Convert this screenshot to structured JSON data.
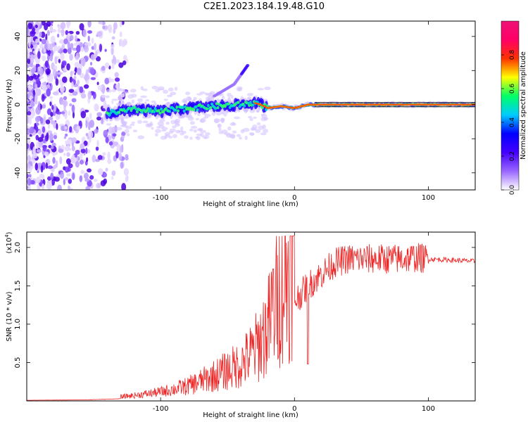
{
  "title": "C2E1.2023.184.19.48.G10",
  "chart_data": [
    {
      "type": "heatmap",
      "name": "spectrogram",
      "xlabel": "Height of straight line (km)",
      "ylabel": "Frequency (Hz)",
      "xlim": [
        -200,
        135
      ],
      "ylim": [
        -50,
        49
      ],
      "xticks": [
        -100,
        0,
        100
      ],
      "xtick_labels": [
        "-100",
        "0",
        "100"
      ],
      "yticks": [
        -40,
        -20,
        0,
        20,
        40
      ],
      "ytick_labels": [
        "-40",
        "-20",
        "0",
        "20",
        "40"
      ],
      "colorbar": {
        "label": "Normalized spectral amplitude",
        "range": [
          0.0,
          1.0
        ],
        "ticks": [
          0.0,
          0.2,
          0.4,
          0.6,
          0.8
        ],
        "tick_labels": [
          "0.0",
          "0.2",
          "0.4",
          "0.6",
          "0.8"
        ],
        "colormap": [
          "#ffffff",
          "#9966ff",
          "#4400ff",
          "#0000ff",
          "#00ccff",
          "#00ff66",
          "#ffff00",
          "#ff3300",
          "#ff0066",
          "#ee1177"
        ]
      },
      "ridge": {
        "x": [
          -140,
          -120,
          -100,
          -80,
          -60,
          -40,
          -30,
          -25,
          -20,
          -10,
          0,
          10,
          20,
          50,
          100,
          135
        ],
        "y": [
          -5,
          -3,
          -4,
          -2,
          -1,
          0,
          1,
          0,
          -2,
          -1,
          -2,
          0,
          0,
          0,
          0,
          0
        ]
      },
      "side_branch": {
        "x": [
          -60,
          -45,
          -35
        ],
        "y": [
          5,
          12,
          23
        ]
      }
    },
    {
      "type": "line",
      "name": "snr",
      "xlabel": "Height of straight line (km)",
      "ylabel": "SNR (10 * v/v)",
      "y_multiplier": "(x10",
      "y_multiplier_exp": "4",
      "y_multiplier_close": ")",
      "xlim": [
        -200,
        135
      ],
      "ylim": [
        0,
        2.2
      ],
      "xticks": [
        -100,
        0,
        100
      ],
      "xtick_labels": [
        "-100",
        "0",
        "100"
      ],
      "yticks": [
        0.5,
        1.0,
        1.5,
        2.0
      ],
      "ytick_labels": [
        "0.5",
        "1.0",
        "1.5",
        "2.0"
      ],
      "color": "#ee2222",
      "series": [
        {
          "name": "SNR envelope",
          "x": [
            -200,
            -160,
            -140,
            -120,
            -100,
            -80,
            -60,
            -40,
            -30,
            -20,
            -15,
            -10,
            0,
            10,
            20,
            30,
            40,
            60,
            80,
            90,
            100,
            135
          ],
          "y": [
            0.02,
            0.03,
            0.05,
            0.08,
            0.12,
            0.18,
            0.28,
            0.38,
            0.5,
            0.7,
            0.9,
            1.05,
            1.3,
            1.5,
            1.65,
            1.8,
            1.85,
            1.85,
            1.85,
            1.87,
            1.85,
            1.82
          ]
        }
      ]
    }
  ]
}
